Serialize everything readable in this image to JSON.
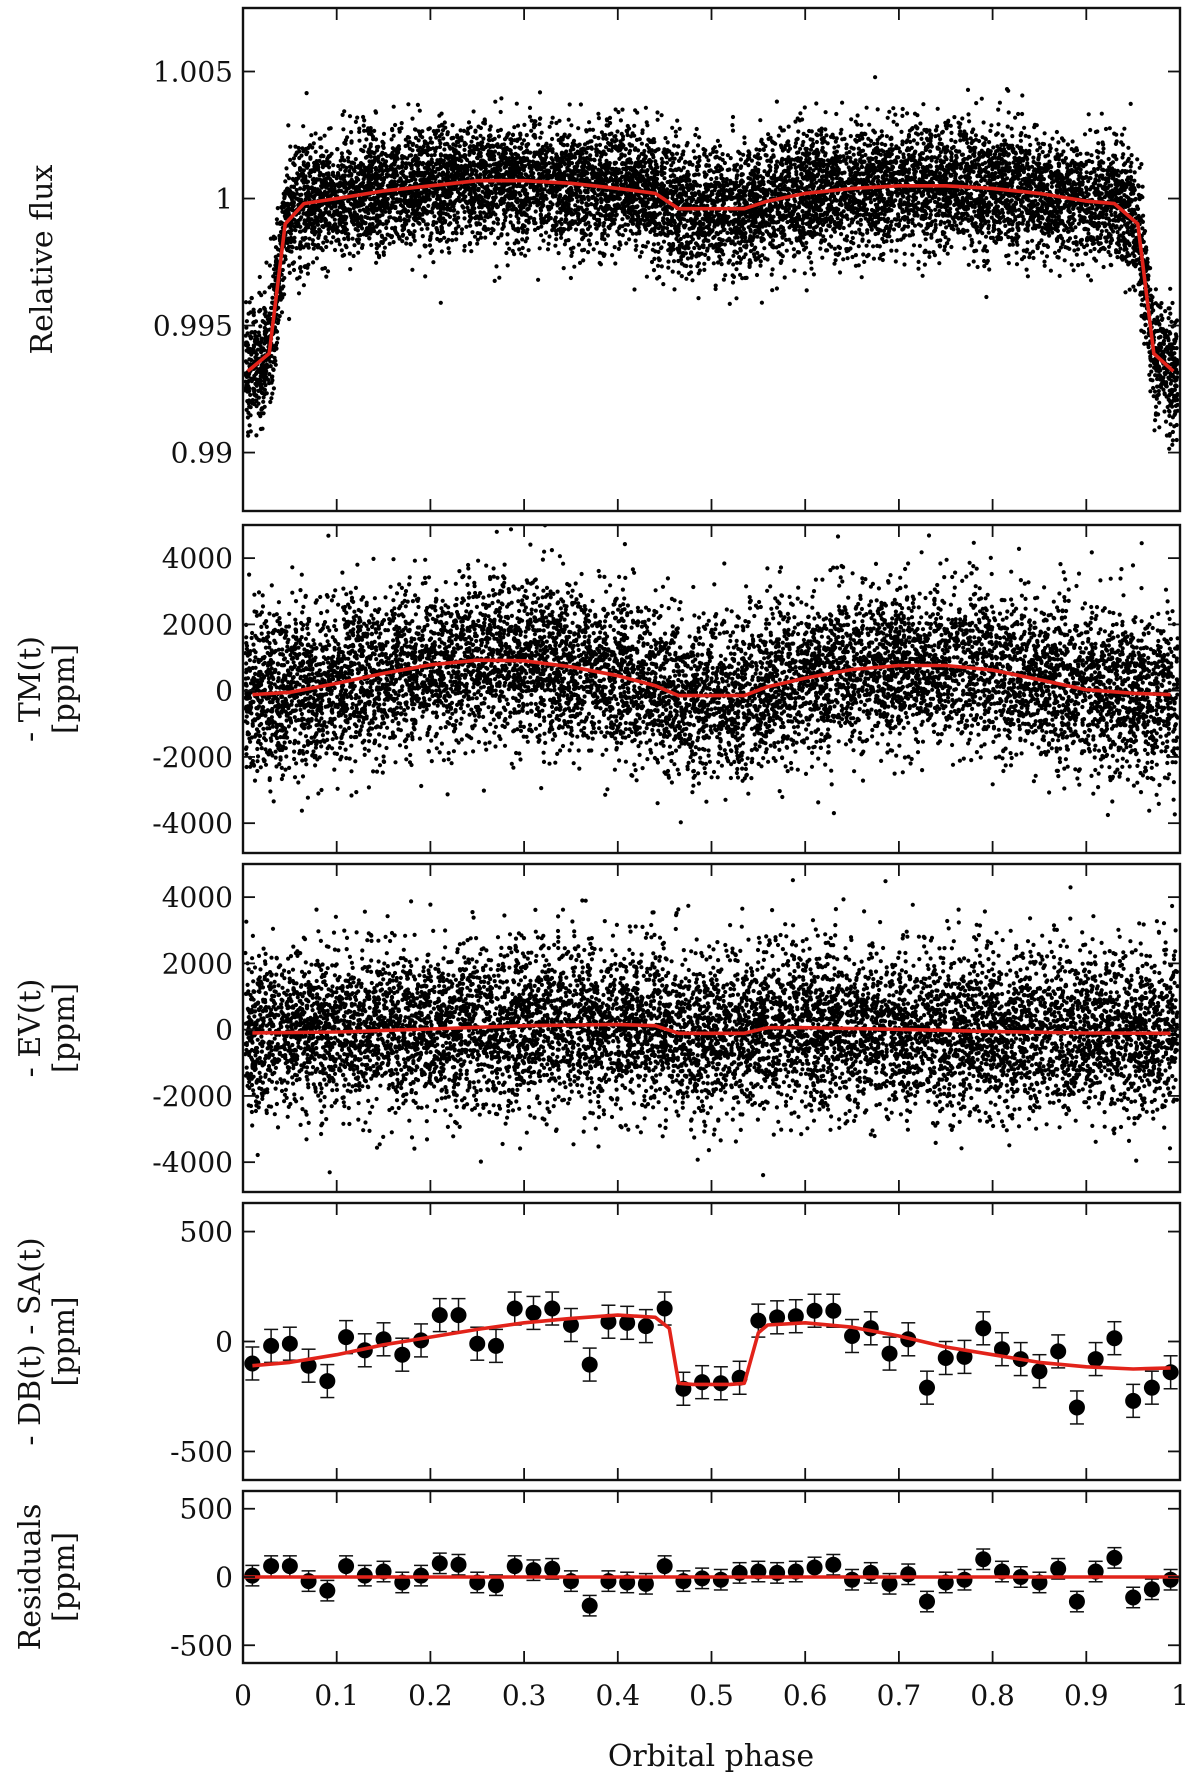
{
  "colors": {
    "points": "#000000",
    "model": "#e2231a",
    "axes": "#111111"
  },
  "chart_data": {
    "type": "scatter",
    "xlabel": "Orbital phase",
    "xlim": [
      0,
      1
    ],
    "xticks": [
      "0",
      "0.1",
      "0.2",
      "0.3",
      "0.4",
      "0.5",
      "0.6",
      "0.7",
      "0.8",
      "0.9",
      "1"
    ],
    "panels": [
      {
        "id": "relative-flux",
        "ylabel_lines": [
          "Relative flux"
        ],
        "ylim": [
          0.9877,
          1.0075
        ],
        "yticks": [
          0.99,
          0.995,
          1,
          1.005
        ],
        "yticklabels": [
          "0.99",
          "0.995",
          "1",
          "1.005"
        ],
        "scatter": {
          "kind": "flux",
          "scatter_sigma": 0.0012
        },
        "model": {
          "name": "full-model",
          "x": [
            0.005,
            0.028,
            0.045,
            0.065,
            0.1,
            0.15,
            0.2,
            0.25,
            0.3,
            0.35,
            0.4,
            0.44,
            0.465,
            0.5,
            0.535,
            0.56,
            0.6,
            0.65,
            0.7,
            0.75,
            0.8,
            0.85,
            0.9,
            0.93,
            0.955,
            0.972,
            0.993
          ],
          "y": [
            0.9932,
            0.9939,
            0.999,
            0.9998,
            1.0,
            1.0003,
            1.0005,
            1.0007,
            1.0007,
            1.0006,
            1.0004,
            1.0002,
            0.9996,
            0.9996,
            0.9996,
            0.9999,
            1.0002,
            1.0004,
            1.0005,
            1.0005,
            1.0004,
            1.0002,
            0.9999,
            0.9998,
            0.999,
            0.9939,
            0.9932
          ]
        }
      },
      {
        "id": "tm",
        "ylabel_lines": [
          "- TM(t)",
          "[ppm]"
        ],
        "ylim": [
          -4900,
          5000
        ],
        "yticks": [
          -4000,
          -2000,
          0,
          2000,
          4000
        ],
        "yticklabels": [
          "-4000",
          "-2000",
          "0",
          "2000",
          "4000"
        ],
        "scatter": {
          "kind": "ppm",
          "scatter_sigma": 1200
        },
        "model": {
          "name": "tm-model",
          "x": [
            0.01,
            0.05,
            0.1,
            0.15,
            0.2,
            0.25,
            0.3,
            0.35,
            0.4,
            0.44,
            0.465,
            0.5,
            0.535,
            0.56,
            0.6,
            0.65,
            0.7,
            0.75,
            0.8,
            0.85,
            0.9,
            0.95,
            0.99
          ],
          "y": [
            -120,
            -50,
            220,
            520,
            780,
            920,
            900,
            720,
            450,
            150,
            -150,
            -150,
            -150,
            120,
            380,
            640,
            760,
            760,
            620,
            330,
            30,
            -80,
            -120
          ]
        }
      },
      {
        "id": "ev",
        "ylabel_lines": [
          "- EV(t)",
          "[ppm]"
        ],
        "ylim": [
          -4900,
          5000
        ],
        "yticks": [
          -4000,
          -2000,
          0,
          2000,
          4000
        ],
        "yticklabels": [
          "-4000",
          "-2000",
          "0",
          "2000",
          "4000"
        ],
        "scatter": {
          "kind": "ppm",
          "scatter_sigma": 1200
        },
        "model": {
          "name": "ev-model",
          "x": [
            0.01,
            0.1,
            0.2,
            0.3,
            0.4,
            0.44,
            0.465,
            0.5,
            0.535,
            0.56,
            0.6,
            0.7,
            0.8,
            0.9,
            0.99
          ],
          "y": [
            -100,
            -70,
            20,
            120,
            160,
            120,
            -110,
            -110,
            -110,
            60,
            60,
            10,
            -60,
            -100,
            -110
          ]
        }
      },
      {
        "id": "db-sa",
        "ylabel_lines": [
          "- DB(t) - SA(t)",
          "[ppm]"
        ],
        "ylim": [
          -630,
          630
        ],
        "yticks": [
          -500,
          0,
          500
        ],
        "yticklabels": [
          "-500",
          "0",
          "500"
        ],
        "binned": {
          "x": [
            0.01,
            0.03,
            0.05,
            0.07,
            0.09,
            0.11,
            0.13,
            0.15,
            0.17,
            0.19,
            0.21,
            0.23,
            0.25,
            0.27,
            0.29,
            0.31,
            0.33,
            0.35,
            0.37,
            0.39,
            0.41,
            0.43,
            0.45,
            0.47,
            0.49,
            0.51,
            0.53,
            0.55,
            0.57,
            0.59,
            0.61,
            0.63,
            0.65,
            0.67,
            0.69,
            0.71,
            0.73,
            0.75,
            0.77,
            0.79,
            0.81,
            0.83,
            0.85,
            0.87,
            0.89,
            0.91,
            0.93,
            0.95,
            0.97,
            0.99
          ],
          "y": [
            -100,
            -20,
            -10,
            -110,
            -180,
            20,
            -40,
            10,
            -60,
            5,
            120,
            120,
            -10,
            -20,
            150,
            130,
            150,
            75,
            -105,
            90,
            85,
            70,
            150,
            -215,
            -185,
            -190,
            -165,
            95,
            110,
            115,
            140,
            140,
            25,
            60,
            -55,
            10,
            -210,
            -75,
            -70,
            60,
            -35,
            -80,
            -135,
            -45,
            -300,
            -80,
            15,
            -270,
            -210,
            -140
          ],
          "err": 75
        },
        "model": {
          "name": "db-sa-model",
          "x": [
            0.01,
            0.05,
            0.1,
            0.15,
            0.2,
            0.25,
            0.3,
            0.35,
            0.4,
            0.44,
            0.455,
            0.465,
            0.48,
            0.52,
            0.535,
            0.55,
            0.56,
            0.6,
            0.65,
            0.7,
            0.75,
            0.8,
            0.85,
            0.9,
            0.95,
            0.99
          ],
          "y": [
            -110,
            -95,
            -60,
            -15,
            20,
            55,
            85,
            105,
            120,
            110,
            60,
            -190,
            -195,
            -195,
            -190,
            40,
            75,
            85,
            65,
            25,
            -25,
            -60,
            -95,
            -115,
            -125,
            -120
          ]
        }
      },
      {
        "id": "residuals",
        "ylabel_lines": [
          "Residuals",
          "[ppm]"
        ],
        "ylim": [
          -630,
          630
        ],
        "yticks": [
          -500,
          0,
          500
        ],
        "yticklabels": [
          "-500",
          "0",
          "500"
        ],
        "binned": {
          "x": [
            0.01,
            0.03,
            0.05,
            0.07,
            0.09,
            0.11,
            0.13,
            0.15,
            0.17,
            0.19,
            0.21,
            0.23,
            0.25,
            0.27,
            0.29,
            0.31,
            0.33,
            0.35,
            0.37,
            0.39,
            0.41,
            0.43,
            0.45,
            0.47,
            0.49,
            0.51,
            0.53,
            0.55,
            0.57,
            0.59,
            0.61,
            0.63,
            0.65,
            0.67,
            0.69,
            0.71,
            0.73,
            0.75,
            0.77,
            0.79,
            0.81,
            0.83,
            0.85,
            0.87,
            0.89,
            0.91,
            0.93,
            0.95,
            0.97,
            0.99
          ],
          "y": [
            10,
            80,
            80,
            -30,
            -100,
            80,
            10,
            40,
            -40,
            10,
            100,
            90,
            -40,
            -60,
            80,
            50,
            60,
            -30,
            -210,
            -30,
            -40,
            -50,
            80,
            -30,
            -10,
            -20,
            30,
            40,
            30,
            40,
            70,
            90,
            -20,
            30,
            -50,
            20,
            -180,
            -40,
            -20,
            130,
            40,
            0,
            -40,
            60,
            -180,
            40,
            140,
            -150,
            -90,
            -20
          ],
          "err": 75
        },
        "model": {
          "name": "zero-line",
          "x": [
            0.0,
            1.0
          ],
          "y": [
            0,
            0
          ]
        }
      }
    ]
  }
}
